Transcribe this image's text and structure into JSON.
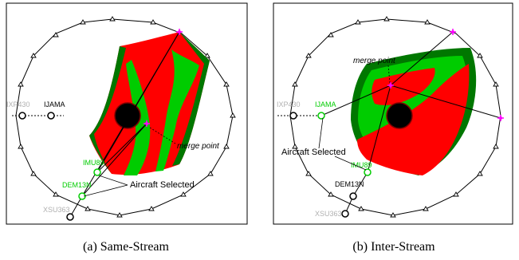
{
  "panels": [
    {
      "caption": "(a) Same-Stream",
      "fixes": [
        "IXP430",
        "IJAMA",
        "IMU89",
        "DEM13N",
        "XSU363"
      ],
      "merge_label": "merge point",
      "selected_label": "Aircraft Selected"
    },
    {
      "caption": "(b) Inter-Stream",
      "fixes": [
        "IXP430",
        "IJAMA",
        "IMU89",
        "DEM13N",
        "XSU363"
      ],
      "merge_label": "merge point",
      "selected_label": "Aircraft Selected"
    }
  ],
  "colors": {
    "conflict": "#ff0000",
    "clear": "#00cc00",
    "clear_edge": "#007700",
    "selected_fix": "#00cc00",
    "inactive_fix": "#b0b0b0",
    "waypoint": "#ff00ff"
  }
}
